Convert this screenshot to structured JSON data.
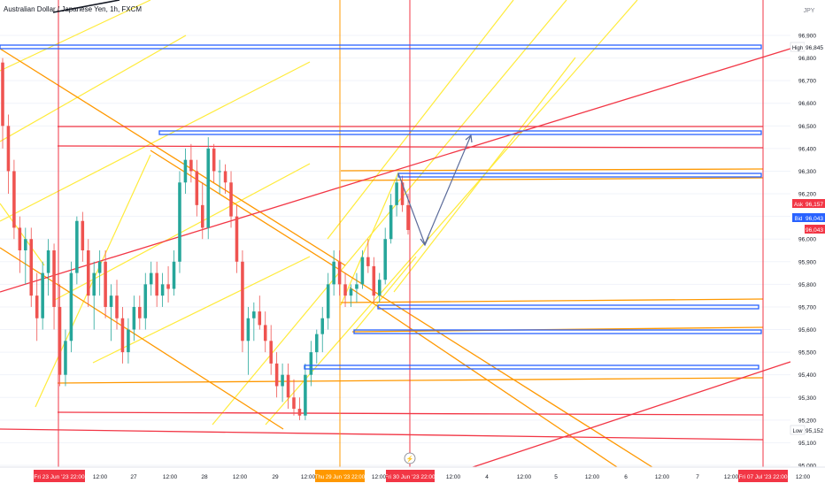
{
  "header": {
    "symbol_title": "Australian Dollar / Japanese Yen, 1h, FXCM"
  },
  "currency": "JPY",
  "y_axis": {
    "ticks": [
      95.0,
      95.1,
      95.2,
      95.3,
      95.4,
      95.5,
      95.6,
      95.7,
      95.8,
      95.9,
      96.0,
      96.1,
      96.2,
      96.3,
      96.4,
      96.5,
      96.6,
      96.7,
      96.8,
      96.9
    ],
    "tick_labels": [
      "95,000",
      "95,100",
      "95,200",
      "95,300",
      "95,400",
      "95,500",
      "95,600",
      "95,700",
      "95,800",
      "95,900",
      "96,000",
      "96,100",
      "96,200",
      "96,300",
      "96,400",
      "96,500",
      "96,600",
      "96,700",
      "96,800",
      "96,900"
    ]
  },
  "price_badges": {
    "high_label": "High",
    "high_value": "96,845",
    "ask_label": "Ask",
    "ask_value": "96,157",
    "bid_label": "Bid",
    "bid_value": "96,043",
    "last_value": "96,043",
    "low_label": "Low",
    "low_value": "95,152"
  },
  "x_axis": {
    "labels": [
      "12:00",
      "27",
      "12:00",
      "28",
      "12:00",
      "29",
      "12:00",
      "4",
      "12:00",
      "5",
      "12:00",
      "6",
      "12:00",
      "7",
      "12:00"
    ],
    "highlights": {
      "date_a": "Fri 23 Jun '23  22:00",
      "date_b": "Thu 29 Jun '23  22:00",
      "date_c": "Fri 30 Jun '23  22:00",
      "date_d": "Fri 07 Jul '23  22:00",
      "short_a": "12:00",
      "short_b": "12:00",
      "short_c": "12:00"
    },
    "event_flag": "⚡"
  },
  "colors": {
    "up": "#26a69a",
    "down": "#ef5350",
    "blue_line": "#2962ff",
    "orange_line": "#ff9800",
    "red_line": "#f23645",
    "yellow_line": "#ffeb3b",
    "arrow": "#5b6b9a"
  },
  "chart_data": {
    "type": "candlestick",
    "instrument": "Australian Dollar / Japanese Yen",
    "timeframe": "1h",
    "y_range": [
      95.0,
      96.95
    ],
    "candles": [
      {
        "o": 96.78,
        "h": 96.8,
        "l": 96.4,
        "c": 96.5
      },
      {
        "o": 96.5,
        "h": 96.55,
        "l": 96.2,
        "c": 96.3
      },
      {
        "o": 96.3,
        "h": 96.35,
        "l": 96.0,
        "c": 96.05
      },
      {
        "o": 96.05,
        "h": 96.1,
        "l": 95.85,
        "c": 95.95
      },
      {
        "o": 95.95,
        "h": 96.05,
        "l": 95.8,
        "c": 96.0
      },
      {
        "o": 96.0,
        "h": 96.05,
        "l": 95.7,
        "c": 95.75
      },
      {
        "o": 95.75,
        "h": 95.85,
        "l": 95.55,
        "c": 95.65
      },
      {
        "o": 95.65,
        "h": 95.9,
        "l": 95.6,
        "c": 95.85
      },
      {
        "o": 95.85,
        "h": 96.0,
        "l": 95.75,
        "c": 95.95
      },
      {
        "o": 95.95,
        "h": 95.98,
        "l": 95.6,
        "c": 95.7
      },
      {
        "o": 95.7,
        "h": 95.8,
        "l": 95.35,
        "c": 95.4
      },
      {
        "o": 95.4,
        "h": 95.6,
        "l": 95.35,
        "c": 95.55
      },
      {
        "o": 95.55,
        "h": 95.9,
        "l": 95.5,
        "c": 95.85
      },
      {
        "o": 95.85,
        "h": 96.1,
        "l": 95.8,
        "c": 96.08
      },
      {
        "o": 96.08,
        "h": 96.12,
        "l": 95.9,
        "c": 95.95
      },
      {
        "o": 95.95,
        "h": 96.0,
        "l": 95.7,
        "c": 95.75
      },
      {
        "o": 95.75,
        "h": 95.9,
        "l": 95.6,
        "c": 95.85
      },
      {
        "o": 95.85,
        "h": 95.95,
        "l": 95.75,
        "c": 95.9
      },
      {
        "o": 95.9,
        "h": 95.95,
        "l": 95.65,
        "c": 95.7
      },
      {
        "o": 95.7,
        "h": 95.8,
        "l": 95.55,
        "c": 95.75
      },
      {
        "o": 95.75,
        "h": 95.82,
        "l": 95.6,
        "c": 95.65
      },
      {
        "o": 95.65,
        "h": 95.7,
        "l": 95.45,
        "c": 95.5
      },
      {
        "o": 95.5,
        "h": 95.65,
        "l": 95.45,
        "c": 95.6
      },
      {
        "o": 95.6,
        "h": 95.75,
        "l": 95.55,
        "c": 95.7
      },
      {
        "o": 95.7,
        "h": 95.75,
        "l": 95.6,
        "c": 95.65
      },
      {
        "o": 95.65,
        "h": 95.85,
        "l": 95.6,
        "c": 95.8
      },
      {
        "o": 95.8,
        "h": 95.9,
        "l": 95.75,
        "c": 95.85
      },
      {
        "o": 95.85,
        "h": 95.9,
        "l": 95.7,
        "c": 95.75
      },
      {
        "o": 95.75,
        "h": 95.85,
        "l": 95.7,
        "c": 95.8
      },
      {
        "o": 95.8,
        "h": 95.88,
        "l": 95.72,
        "c": 95.78
      },
      {
        "o": 95.78,
        "h": 95.95,
        "l": 95.75,
        "c": 95.9
      },
      {
        "o": 95.9,
        "h": 96.3,
        "l": 95.85,
        "c": 96.25
      },
      {
        "o": 96.25,
        "h": 96.4,
        "l": 96.2,
        "c": 96.35
      },
      {
        "o": 96.35,
        "h": 96.42,
        "l": 96.25,
        "c": 96.3
      },
      {
        "o": 96.3,
        "h": 96.35,
        "l": 96.1,
        "c": 96.15
      },
      {
        "o": 96.15,
        "h": 96.25,
        "l": 96.0,
        "c": 96.05
      },
      {
        "o": 96.05,
        "h": 96.45,
        "l": 96.0,
        "c": 96.4
      },
      {
        "o": 96.4,
        "h": 96.42,
        "l": 96.25,
        "c": 96.3
      },
      {
        "o": 96.3,
        "h": 96.35,
        "l": 96.2,
        "c": 96.3
      },
      {
        "o": 96.3,
        "h": 96.33,
        "l": 96.2,
        "c": 96.25
      },
      {
        "o": 96.25,
        "h": 96.3,
        "l": 96.05,
        "c": 96.1
      },
      {
        "o": 96.1,
        "h": 96.15,
        "l": 95.85,
        "c": 95.9
      },
      {
        "o": 95.9,
        "h": 95.95,
        "l": 95.5,
        "c": 95.55
      },
      {
        "o": 95.55,
        "h": 95.7,
        "l": 95.4,
        "c": 95.65
      },
      {
        "o": 95.65,
        "h": 95.72,
        "l": 95.55,
        "c": 95.68
      },
      {
        "o": 95.68,
        "h": 95.75,
        "l": 95.6,
        "c": 95.62
      },
      {
        "o": 95.62,
        "h": 95.68,
        "l": 95.5,
        "c": 95.55
      },
      {
        "o": 95.55,
        "h": 95.62,
        "l": 95.4,
        "c": 95.45
      },
      {
        "o": 95.45,
        "h": 95.5,
        "l": 95.3,
        "c": 95.35
      },
      {
        "o": 95.35,
        "h": 95.45,
        "l": 95.28,
        "c": 95.4
      },
      {
        "o": 95.4,
        "h": 95.45,
        "l": 95.25,
        "c": 95.3
      },
      {
        "o": 95.3,
        "h": 95.38,
        "l": 95.22,
        "c": 95.25
      },
      {
        "o": 95.25,
        "h": 95.3,
        "l": 95.2,
        "c": 95.22
      },
      {
        "o": 95.22,
        "h": 95.45,
        "l": 95.2,
        "c": 95.4
      },
      {
        "o": 95.4,
        "h": 95.55,
        "l": 95.35,
        "c": 95.5
      },
      {
        "o": 95.5,
        "h": 95.6,
        "l": 95.45,
        "c": 95.58
      },
      {
        "o": 95.58,
        "h": 95.7,
        "l": 95.5,
        "c": 95.65
      },
      {
        "o": 95.65,
        "h": 95.85,
        "l": 95.6,
        "c": 95.8
      },
      {
        "o": 95.8,
        "h": 95.95,
        "l": 95.75,
        "c": 95.9
      },
      {
        "o": 95.9,
        "h": 95.95,
        "l": 95.75,
        "c": 95.8
      },
      {
        "o": 95.8,
        "h": 95.85,
        "l": 95.7,
        "c": 95.75
      },
      {
        "o": 95.75,
        "h": 95.8,
        "l": 95.7,
        "c": 95.78
      },
      {
        "o": 95.78,
        "h": 95.85,
        "l": 95.72,
        "c": 95.8
      },
      {
        "o": 95.8,
        "h": 95.95,
        "l": 95.78,
        "c": 95.92
      },
      {
        "o": 95.92,
        "h": 96.0,
        "l": 95.85,
        "c": 95.88
      },
      {
        "o": 95.88,
        "h": 95.92,
        "l": 95.72,
        "c": 95.75
      },
      {
        "o": 95.75,
        "h": 95.85,
        "l": 95.72,
        "c": 95.82
      },
      {
        "o": 95.82,
        "h": 96.05,
        "l": 95.8,
        "c": 96.0
      },
      {
        "o": 96.0,
        "h": 96.2,
        "l": 95.98,
        "c": 96.15
      },
      {
        "o": 96.15,
        "h": 96.27,
        "l": 96.1,
        "c": 96.25
      },
      {
        "o": 96.25,
        "h": 96.28,
        "l": 96.12,
        "c": 96.15
      },
      {
        "o": 96.15,
        "h": 96.2,
        "l": 96.02,
        "c": 96.04
      }
    ],
    "annotations": {
      "high": 96.845,
      "low": 95.152,
      "ask": 96.157,
      "bid": 96.043
    }
  }
}
